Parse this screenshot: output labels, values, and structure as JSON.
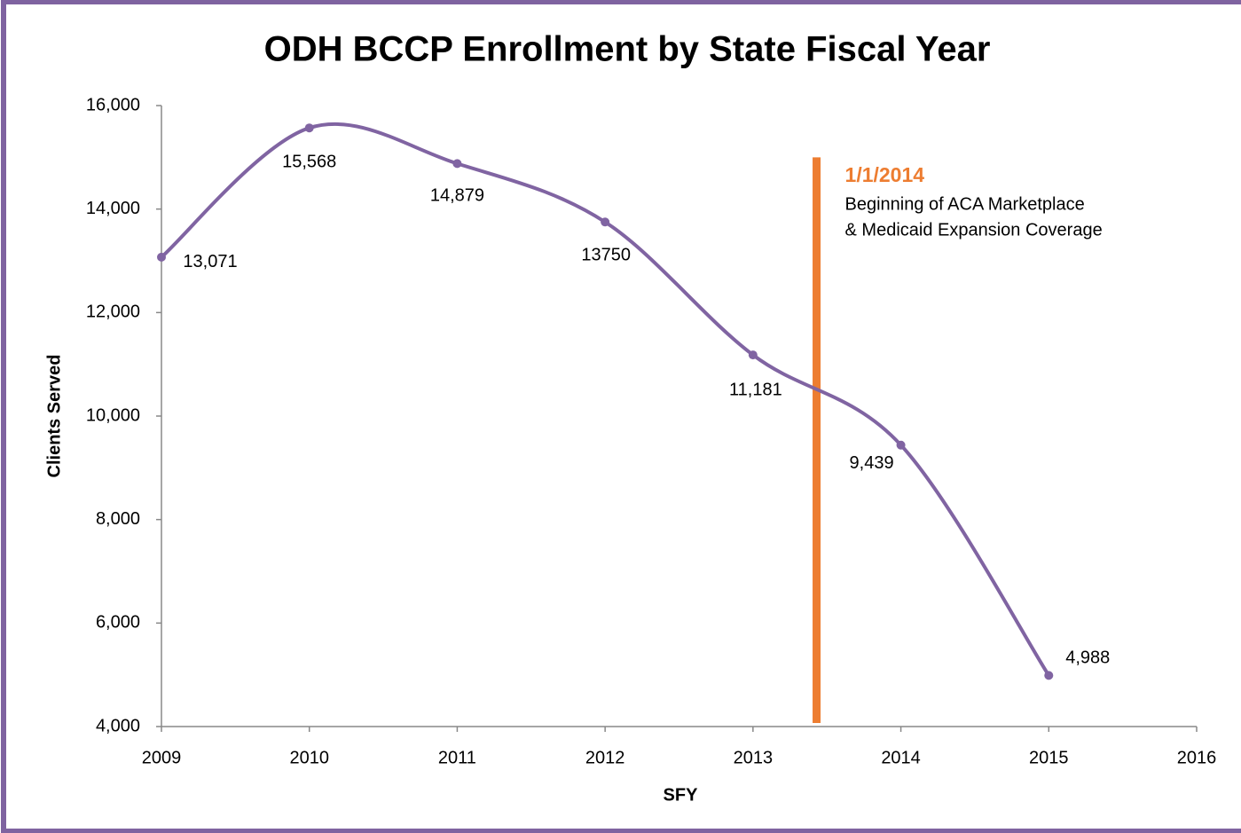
{
  "chart_data": {
    "type": "line",
    "title": "ODH BCCP Enrollment by State Fiscal Year",
    "x_label": "SFY",
    "y_label": "Clients Served",
    "x": [
      2009,
      2010,
      2011,
      2012,
      2013,
      2014,
      2015
    ],
    "series": [
      {
        "name": "Clients Served",
        "color": "#8064a2",
        "values": [
          13071,
          15568,
          14879,
          13750,
          11181,
          9439,
          4988
        ],
        "value_labels": [
          "13,071",
          "15,568",
          "14,879",
          "13750",
          "11,181",
          "9,439",
          "4,988"
        ]
      }
    ],
    "smooth": true,
    "xlim": [
      2009,
      2016
    ],
    "xticks": [
      2009,
      2010,
      2011,
      2012,
      2013,
      2014,
      2015,
      2016
    ],
    "ylim": [
      4000,
      16000
    ],
    "yticks": [
      {
        "value": 4000,
        "label": "4,000"
      },
      {
        "value": 6000,
        "label": "6,000"
      },
      {
        "value": 8000,
        "label": "8,000"
      },
      {
        "value": 10000,
        "label": "10,000"
      },
      {
        "value": 12000,
        "label": "12,000"
      },
      {
        "value": 14000,
        "label": "14,000"
      },
      {
        "value": 16000,
        "label": "16,000"
      }
    ],
    "grid": false,
    "annotation": {
      "x": 2013.43,
      "y_range": [
        4000,
        15000
      ],
      "color": "#ed7d31",
      "title": "1/1/2014",
      "text": [
        "Beginning of ACA Marketplace",
        "& Medicaid Expansion Coverage"
      ]
    }
  }
}
